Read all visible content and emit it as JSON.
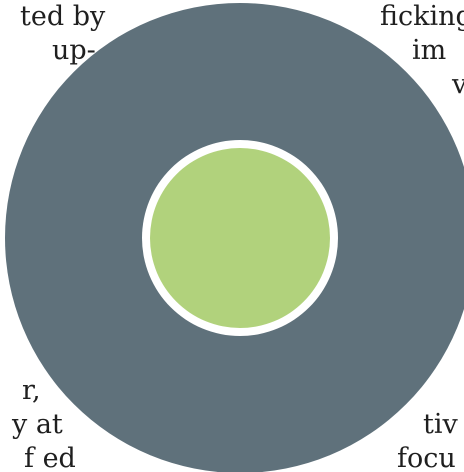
{
  "text_fragments": [
    "ted by",
    "up-",
    "-",
    "ficking",
    "im",
    "v",
    "r,",
    "y at",
    "f ed",
    "tiv",
    "focu"
  ],
  "diagram": {
    "outer_circle_color": "#5f717b",
    "inner_circle_color": "#b1d27c",
    "inner_ring_color": "#ffffff"
  }
}
